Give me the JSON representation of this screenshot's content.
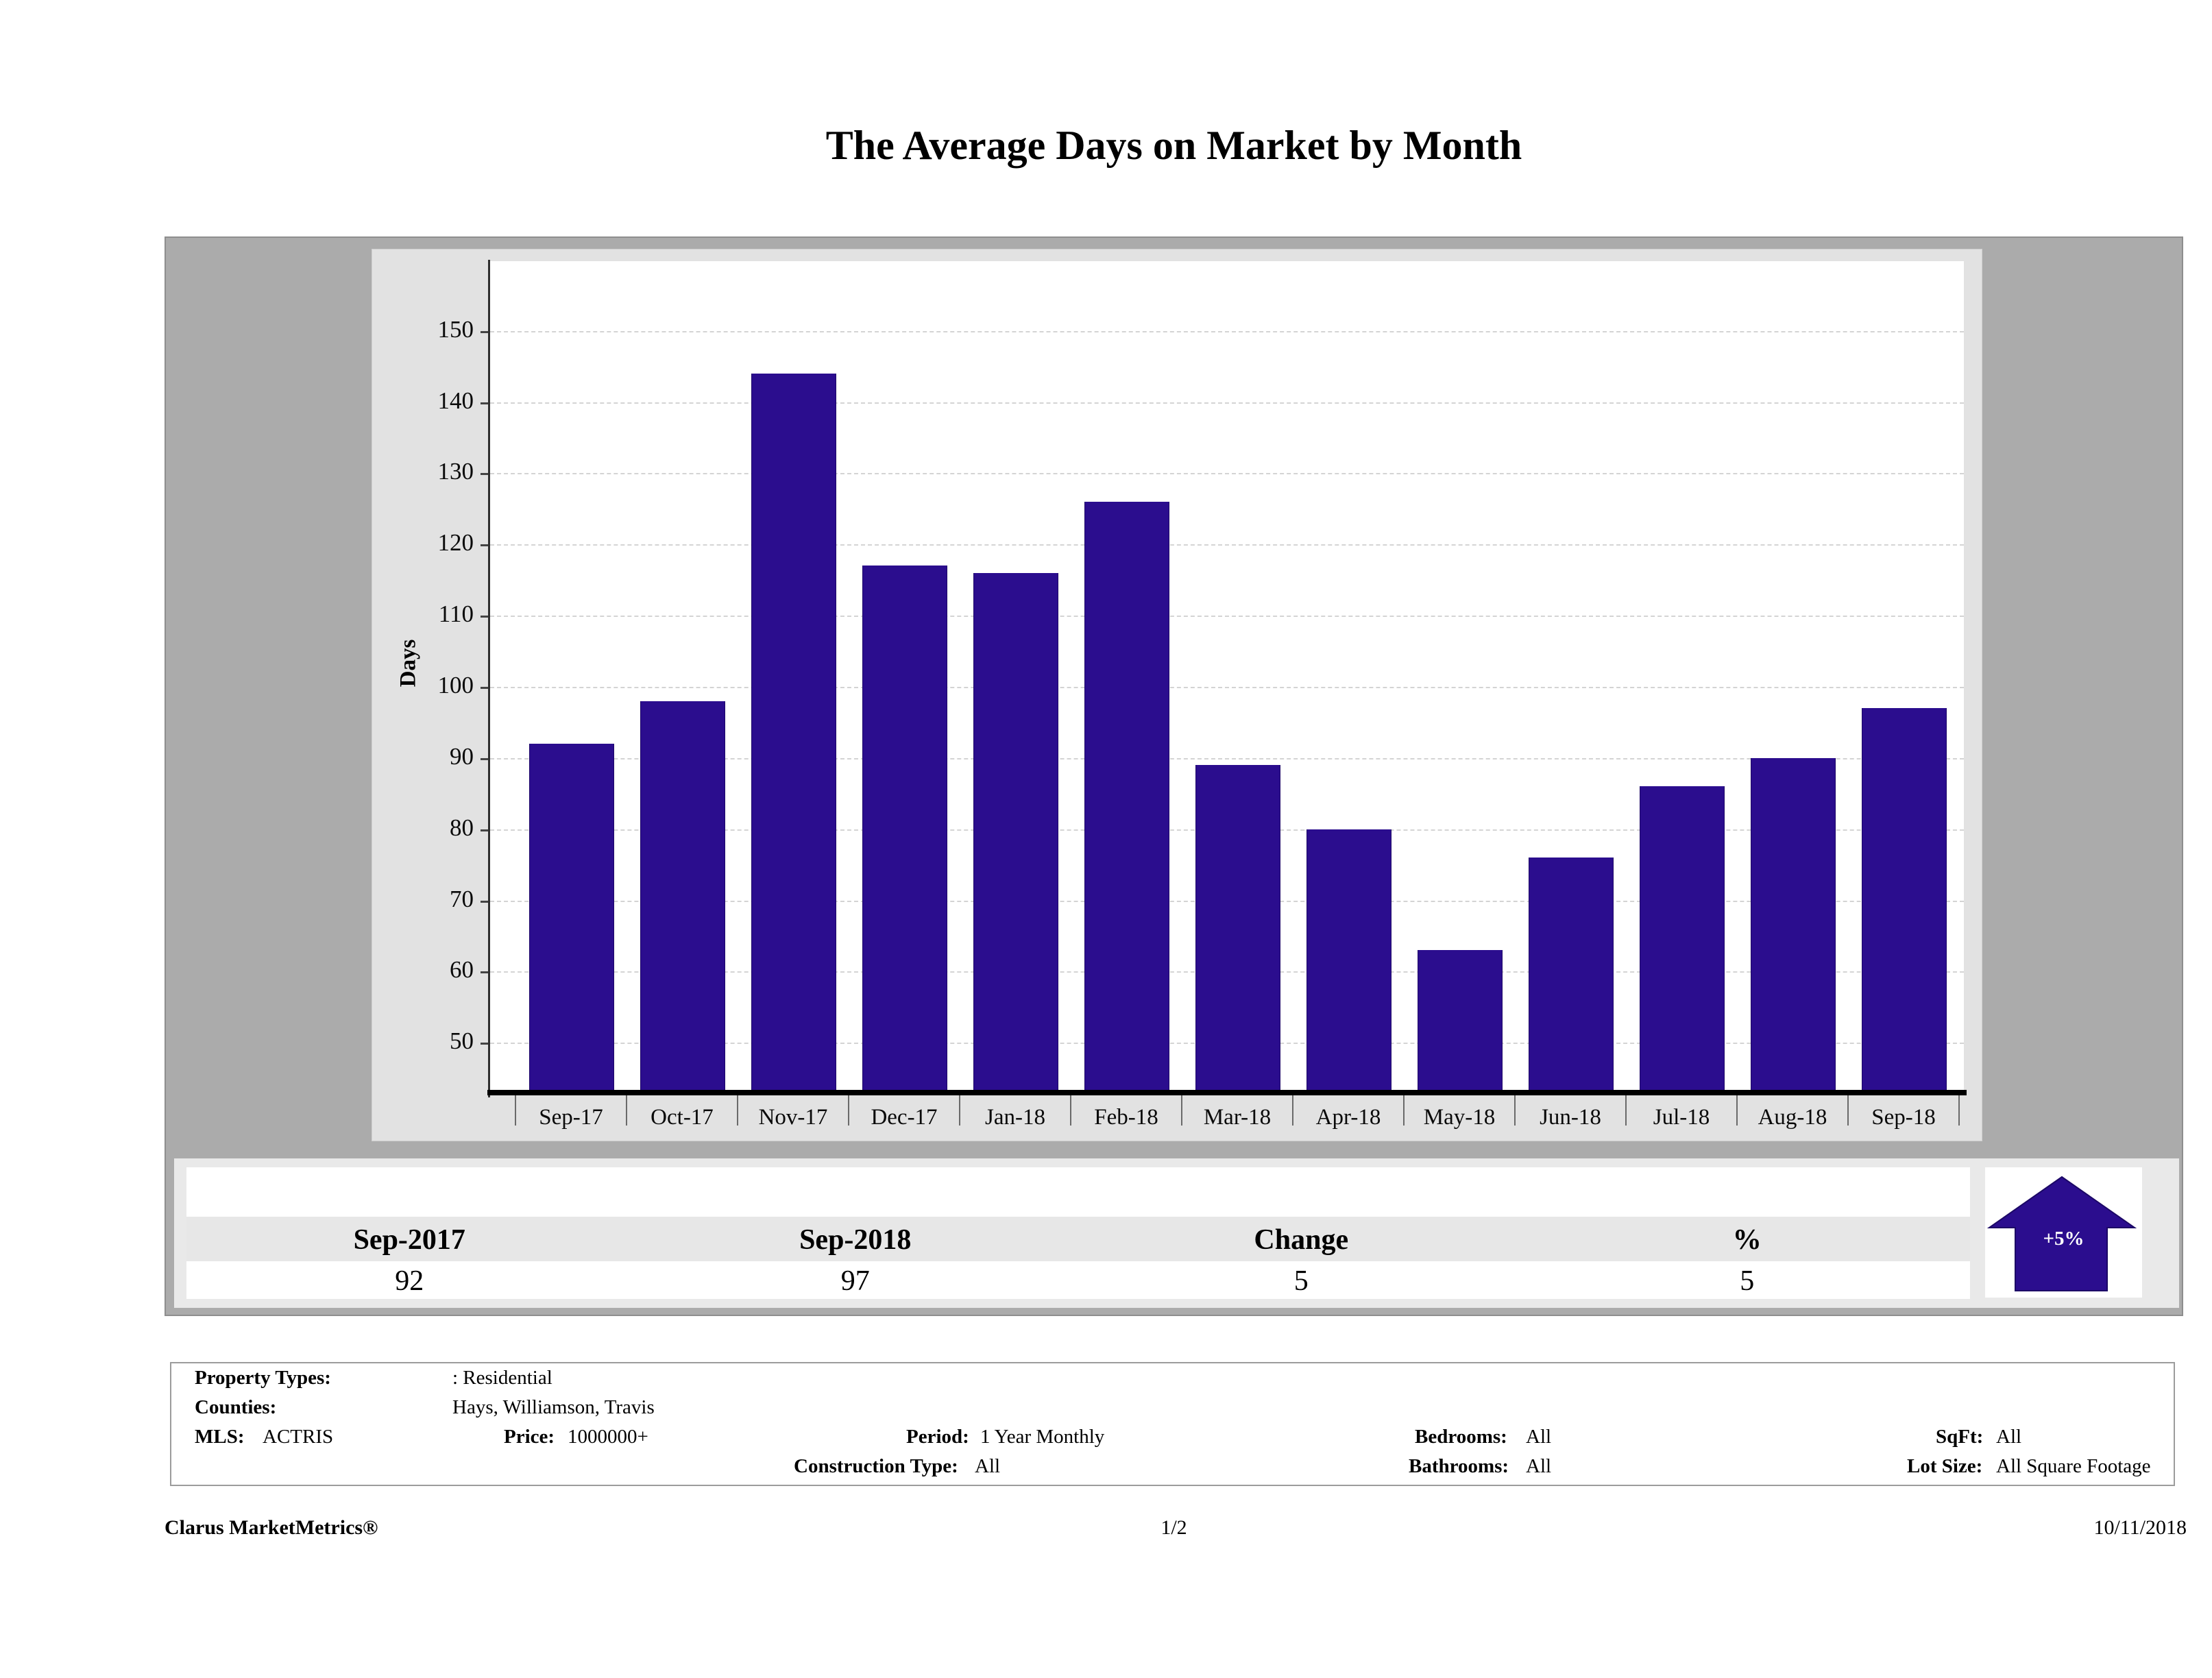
{
  "title": "The Average Days on Market by Month",
  "chart_data": {
    "type": "bar",
    "title": "The Average Days on Market by Month",
    "categories": [
      "Sep-17",
      "Oct-17",
      "Nov-17",
      "Dec-17",
      "Jan-18",
      "Feb-18",
      "Mar-18",
      "Apr-18",
      "May-18",
      "Jun-18",
      "Jul-18",
      "Aug-18",
      "Sep-18"
    ],
    "values": [
      92,
      98,
      144,
      117,
      116,
      126,
      89,
      80,
      63,
      76,
      86,
      90,
      97
    ],
    "xlabel": "",
    "ylabel": "Days",
    "ylim": [
      43,
      160
    ],
    "yticks": [
      50,
      60,
      70,
      80,
      90,
      100,
      110,
      120,
      130,
      140,
      150
    ],
    "grid": true,
    "legend": false,
    "bar_color": "#2b0d8e"
  },
  "summary_table": {
    "columns": [
      "Sep-2017",
      "Sep-2018",
      "Change",
      "%"
    ],
    "values": [
      "92",
      "97",
      "5",
      "5"
    ]
  },
  "change_badge": {
    "label": "+5%",
    "direction": "up",
    "color": "#2b0d8e"
  },
  "details": {
    "property_types_label": "Property Types:",
    "property_types_value": ": Residential",
    "counties_label": "Counties:",
    "counties_value": "Hays, Williamson, Travis",
    "mls_label": "MLS:",
    "mls_value": "ACTRIS",
    "price_label": "Price:",
    "price_value": "1000000+",
    "period_label": "Period:",
    "period_value": "1 Year Monthly",
    "construction_label": "Construction Type:",
    "construction_value": "All",
    "bedrooms_label": "Bedrooms:",
    "bedrooms_value": "All",
    "bathrooms_label": "Bathrooms:",
    "bathrooms_value": "All",
    "sqft_label": "SqFt:",
    "sqft_value": "All",
    "lotsize_label": "Lot Size:",
    "lotsize_value": "All Square Footage"
  },
  "footer": {
    "brand": "Clarus MarketMetrics®",
    "page": "1/2",
    "date": "10/11/2018"
  },
  "colors": {
    "bar": "#2b0d8e",
    "panel_gray": "#ababab",
    "chart_box_gray": "#e2e2e2",
    "header_row_gray": "#e7e7e7",
    "gridline": "#d4d4d4"
  }
}
